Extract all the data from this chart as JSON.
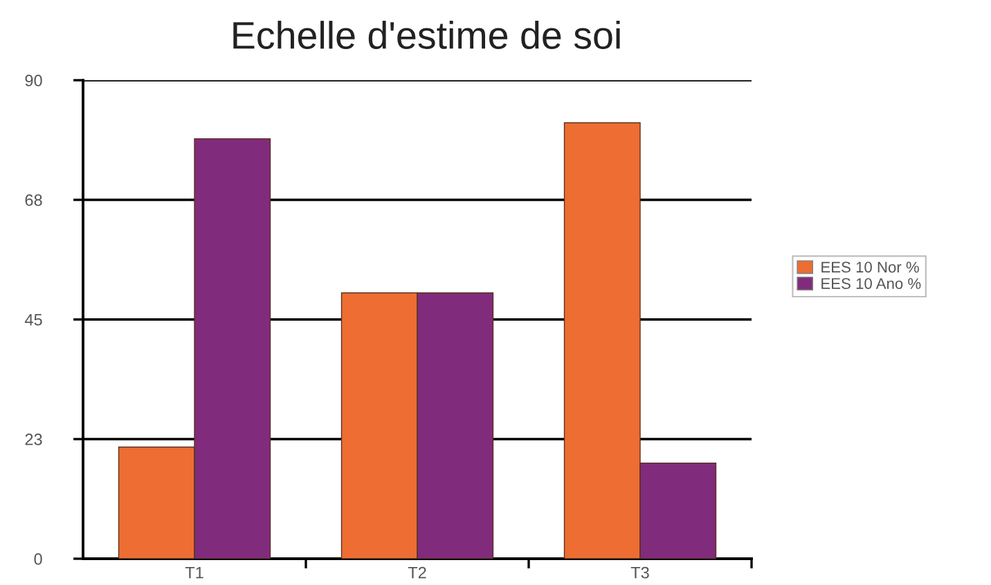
{
  "chart_data": {
    "type": "bar",
    "title": "Echelle d'estime de soi",
    "categories": [
      "T1",
      "T2",
      "T3"
    ],
    "series": [
      {
        "name": "EES 10 Nor %",
        "color": "#ed6d32",
        "values": [
          21,
          50,
          82
        ]
      },
      {
        "name": "EES 10 Ano %",
        "color": "#812b7c",
        "values": [
          79,
          50,
          18
        ]
      }
    ],
    "ylim": [
      0,
      90
    ],
    "yticks": [
      0,
      {
        "value": 22.5,
        "label": "23"
      },
      45,
      {
        "value": 67.5,
        "label": "68"
      },
      90
    ],
    "grid": "y",
    "legend": "right"
  }
}
